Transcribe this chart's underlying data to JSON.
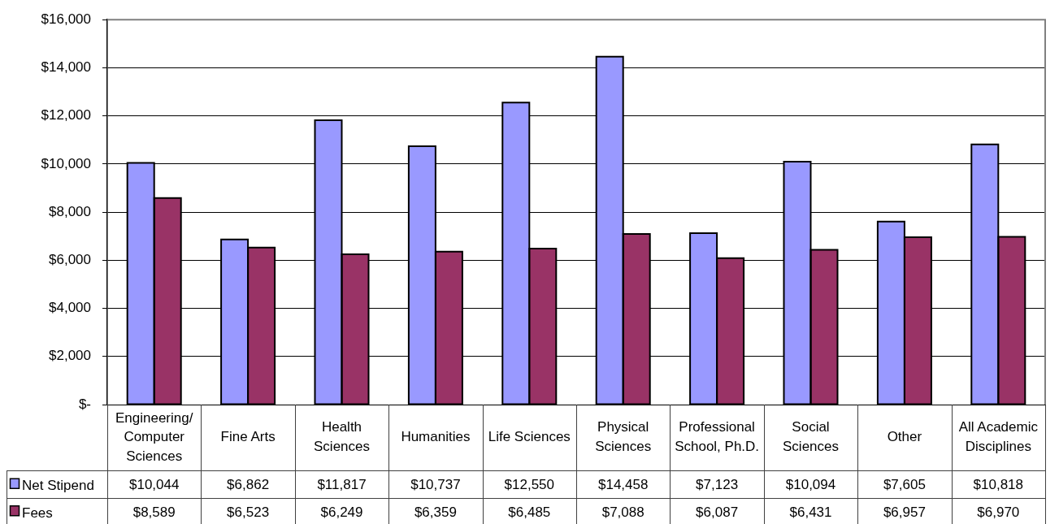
{
  "chart_data": {
    "type": "bar",
    "categories": [
      "Engineering/Computer Sciences",
      "Fine Arts",
      "Health Sciences",
      "Humanities",
      "Life Sciences",
      "Physical Sciences",
      "Professional School, Ph.D.",
      "Social Sciences",
      "Other",
      "All Academic Disciplines"
    ],
    "series": [
      {
        "name": "Net Stipend",
        "color": "#9999ff",
        "values": [
          10044,
          6862,
          11817,
          10737,
          12550,
          14458,
          7123,
          10094,
          7605,
          10818
        ],
        "value_labels": [
          "$10,044",
          "$6,862",
          "$11,817",
          "$10,737",
          "$12,550",
          "$14,458",
          "$7,123",
          "$10,094",
          "$7,605",
          "$10,818"
        ]
      },
      {
        "name": "Fees",
        "color": "#993366",
        "values": [
          8589,
          6523,
          6249,
          6359,
          6485,
          7088,
          6087,
          6431,
          6957,
          6970
        ],
        "value_labels": [
          "$8,589",
          "$6,523",
          "$6,249",
          "$6,359",
          "$6,485",
          "$7,088",
          "$6,087",
          "$6,431",
          "$6,957",
          "$6,970"
        ]
      }
    ],
    "ylim": [
      0,
      16000
    ],
    "yticks": [
      {
        "value": 0,
        "label": "$-"
      },
      {
        "value": 2000,
        "label": "$2,000"
      },
      {
        "value": 4000,
        "label": "$4,000"
      },
      {
        "value": 6000,
        "label": "$6,000"
      },
      {
        "value": 8000,
        "label": "$8,000"
      },
      {
        "value": 10000,
        "label": "$10,000"
      },
      {
        "value": 12000,
        "label": "$12,000"
      },
      {
        "value": 14000,
        "label": "$14,000"
      },
      {
        "value": 16000,
        "label": "$16,000"
      }
    ],
    "grid": "y",
    "legend": "bottom left"
  }
}
